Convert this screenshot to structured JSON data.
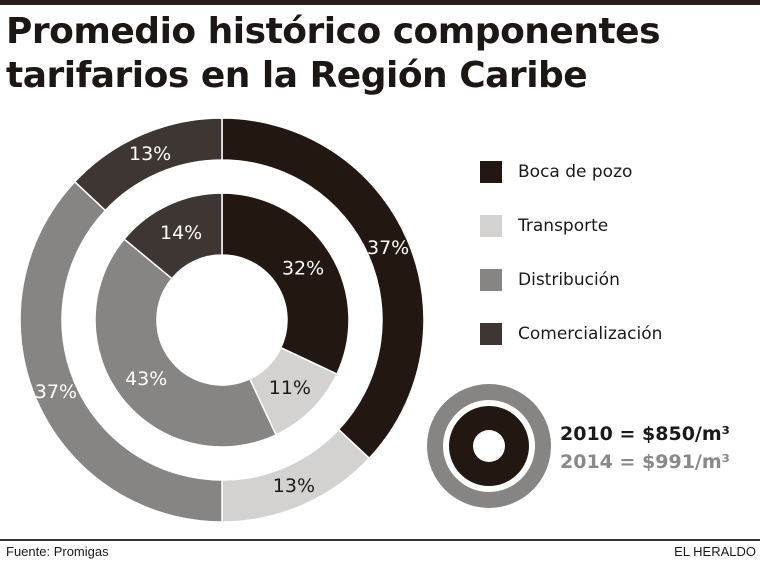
{
  "title_lines": [
    "Promedio histórico componentes",
    "tarifarios en la Región Caribe"
  ],
  "chart_data": {
    "type": "pie",
    "variant": "nested-donut",
    "categories": [
      "Boca de pozo",
      "Transporte",
      "Distribución",
      "Comercialización"
    ],
    "colors": [
      "#231711",
      "#d3d2d0",
      "#868583",
      "#3d3633"
    ],
    "label_colors": [
      "#ffffff",
      "#1a1a1a",
      "#ffffff",
      "#ffffff"
    ],
    "series": [
      {
        "name": "2010 = $850/m³",
        "ring": "inner",
        "values": [
          32,
          11,
          43,
          14
        ],
        "labels": [
          "32%",
          "11%",
          "43%",
          "14%"
        ]
      },
      {
        "name": "2014 = $991/m³",
        "ring": "outer",
        "values": [
          37,
          13,
          37,
          13
        ],
        "labels": [
          "37%",
          "13%",
          "37%",
          "13%"
        ]
      }
    ],
    "legend": {
      "placement": "right"
    }
  },
  "years": {
    "y2010": "2010 = $850/m³",
    "y2014": "2014 = $991/m³"
  },
  "footer": {
    "source": "Fuente: Promigas",
    "brand": "EL HERALDO"
  }
}
